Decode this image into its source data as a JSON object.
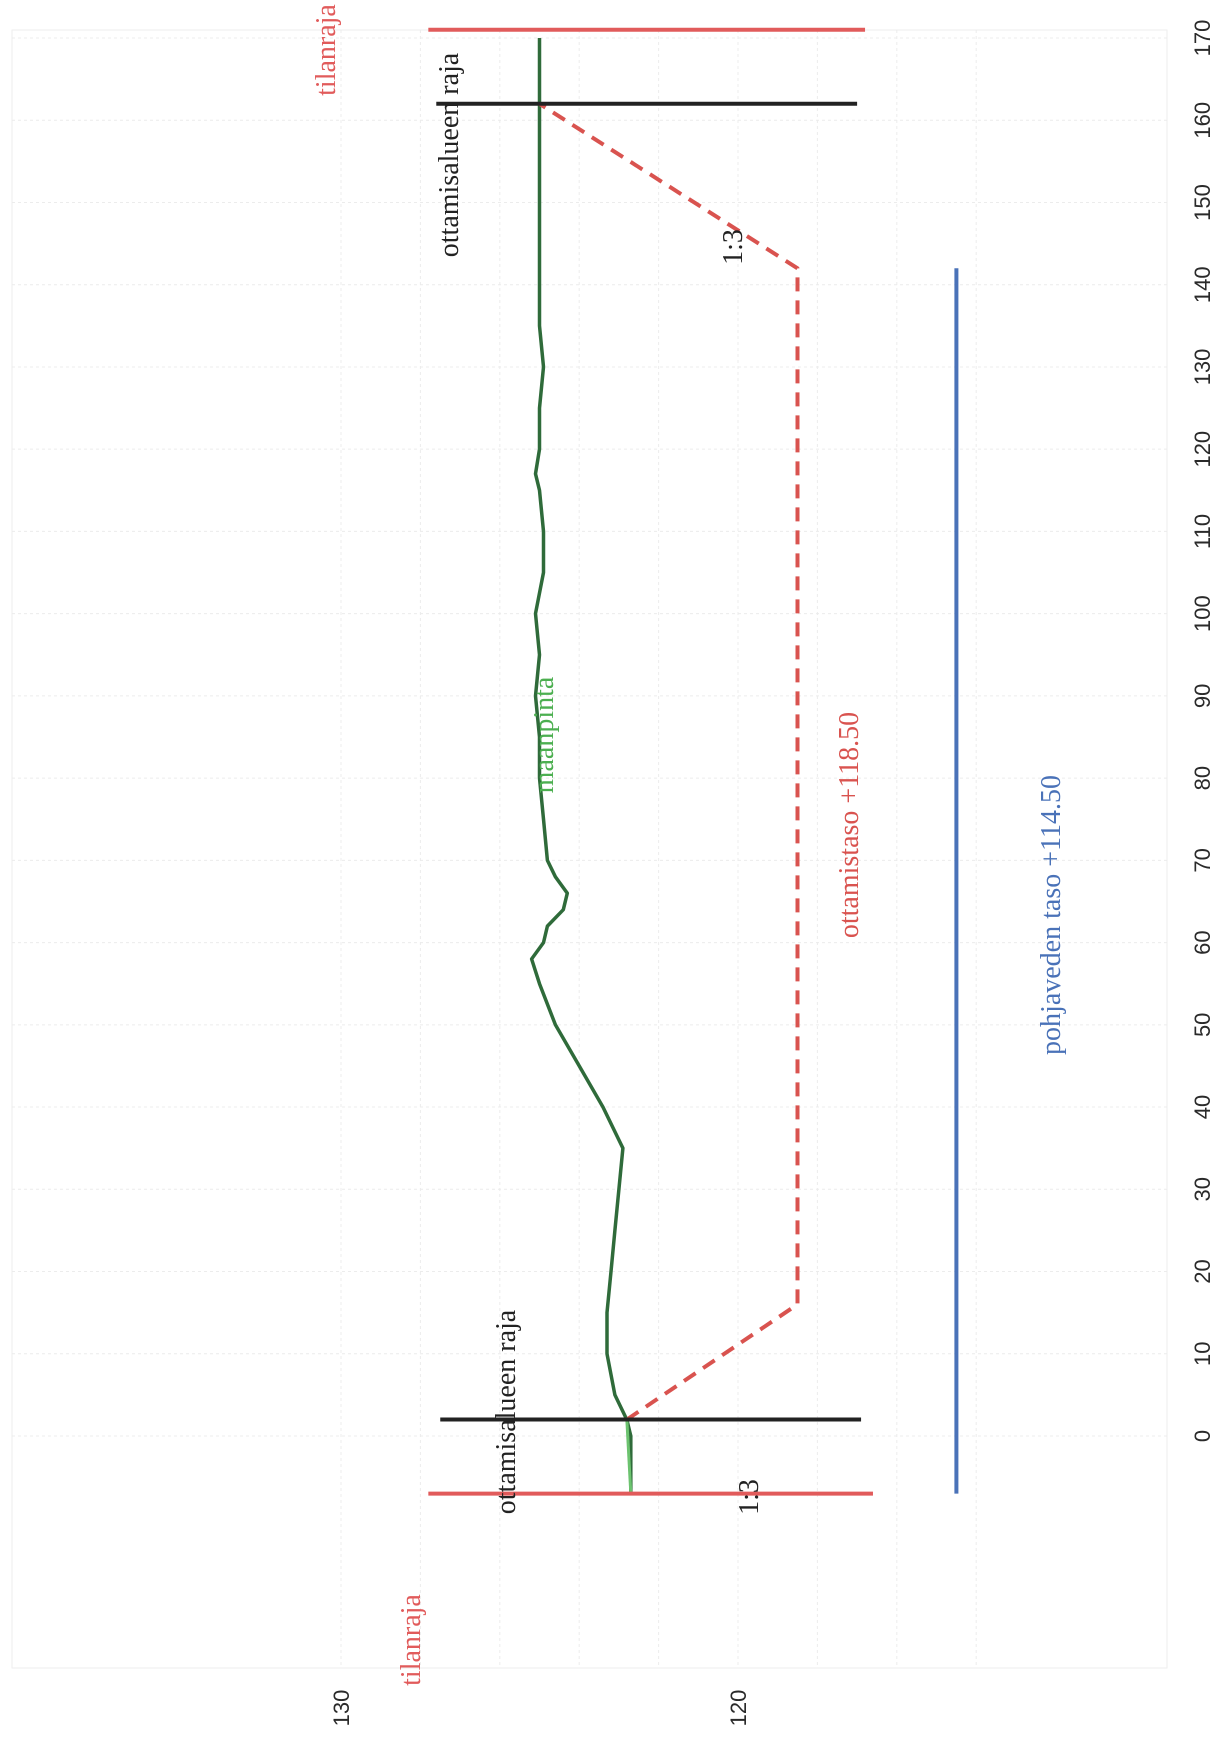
{
  "chart_data": {
    "type": "line",
    "orientation": "rotated-90-ccw",
    "x_axis": {
      "ticks": [
        0,
        10,
        20,
        30,
        40,
        50,
        60,
        70,
        80,
        90,
        100,
        110,
        120,
        130,
        140,
        150,
        160,
        170
      ],
      "xlim": [
        -8,
        174
      ]
    },
    "y_axis": {
      "ticks": [
        130,
        120
      ],
      "ylim": [
        113.5,
        132
      ]
    },
    "grid": true,
    "series": [
      {
        "name": "maanpinta",
        "color": "#2f6b3a",
        "x": [
          -7,
          -5,
          0,
          2,
          5,
          10,
          15,
          20,
          25,
          30,
          35,
          40,
          45,
          50,
          55,
          58,
          60,
          62,
          64,
          66,
          68,
          70,
          75,
          80,
          85,
          90,
          95,
          100,
          105,
          110,
          115,
          117,
          120,
          125,
          130,
          135,
          140,
          145,
          150,
          155,
          160,
          162,
          165,
          170
        ],
        "y": [
          122.7,
          122.7,
          122.7,
          122.8,
          123.1,
          123.3,
          123.3,
          123.2,
          123.1,
          123.0,
          122.9,
          123.4,
          124.0,
          124.6,
          125.0,
          125.2,
          124.9,
          124.8,
          124.4,
          124.3,
          124.6,
          124.8,
          124.9,
          125.0,
          125.0,
          125.1,
          125.0,
          125.1,
          124.9,
          124.9,
          125.0,
          125.1,
          125.0,
          125.0,
          124.9,
          125.0,
          125.0,
          125.0,
          125.0,
          125.0,
          125.0,
          125.0,
          125.0,
          125.0
        ]
      },
      {
        "name": "ottamistaso +118.50",
        "color": "#d9534f",
        "style": "dashed",
        "x": [
          2,
          16,
          142,
          162
        ],
        "y": [
          122.8,
          118.5,
          118.5,
          125.0
        ]
      },
      {
        "name": "pohjaveden taso +114.50",
        "color": "#4a72b8",
        "x": [
          -7,
          142
        ],
        "y": [
          114.5,
          114.5
        ]
      }
    ],
    "vertical_lines": [
      {
        "label": "tilanraja",
        "x": -7,
        "y_range": [
          116.6,
          127.8
        ],
        "color": "#e15b5b"
      },
      {
        "label": "tilanraja",
        "x": 171,
        "y_range": [
          116.8,
          127.8
        ],
        "color": "#e15b5b"
      },
      {
        "label": "ottamisalueen raja",
        "x": 2,
        "y_range": [
          116.9,
          127.5
        ],
        "color": "#222222"
      },
      {
        "label": "ottamisalueen raja",
        "x": 162,
        "y_range": [
          117.0,
          127.6
        ],
        "color": "#222222"
      }
    ],
    "annotations": [
      {
        "text": "maanpinta",
        "color": "#4caf50"
      },
      {
        "text": "ottamistaso +118.50",
        "color": "#d9534f"
      },
      {
        "text": "pohjaveden taso +114.50",
        "color": "#4a72b8"
      },
      {
        "text": "1:3",
        "color": "#222222"
      },
      {
        "text": "1:3",
        "color": "#222222"
      },
      {
        "text": "ottamisalueen raja",
        "color": "#222222"
      },
      {
        "text": "ottamisalueen raja",
        "color": "#222222"
      },
      {
        "text": "tilanraja",
        "color": "#e15b5b"
      },
      {
        "text": "tilanraja",
        "color": "#e15b5b"
      }
    ]
  }
}
